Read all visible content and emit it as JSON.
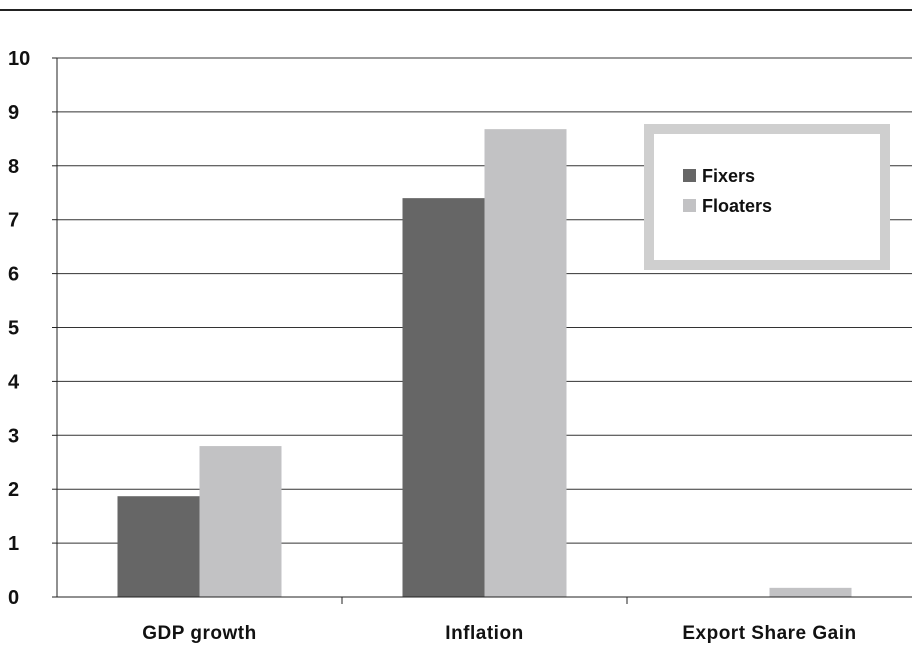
{
  "chart_data": {
    "type": "bar",
    "categories": [
      "GDP growth",
      "Inflation",
      "Export Share Gain"
    ],
    "series": [
      {
        "name": "Fixers",
        "color": "#666666",
        "values": [
          1.87,
          7.4,
          0
        ]
      },
      {
        "name": "Floaters",
        "color": "#c2c2c4",
        "values": [
          2.8,
          8.68,
          0.17
        ]
      }
    ],
    "yticks": [
      "0",
      "1",
      "2",
      "3",
      "4",
      "5",
      "6",
      "7",
      "8",
      "9",
      "10"
    ],
    "ylim": [
      0,
      10
    ],
    "grid": true,
    "legend_position": "top-right",
    "legend_border_color": "#cfcfcf"
  }
}
